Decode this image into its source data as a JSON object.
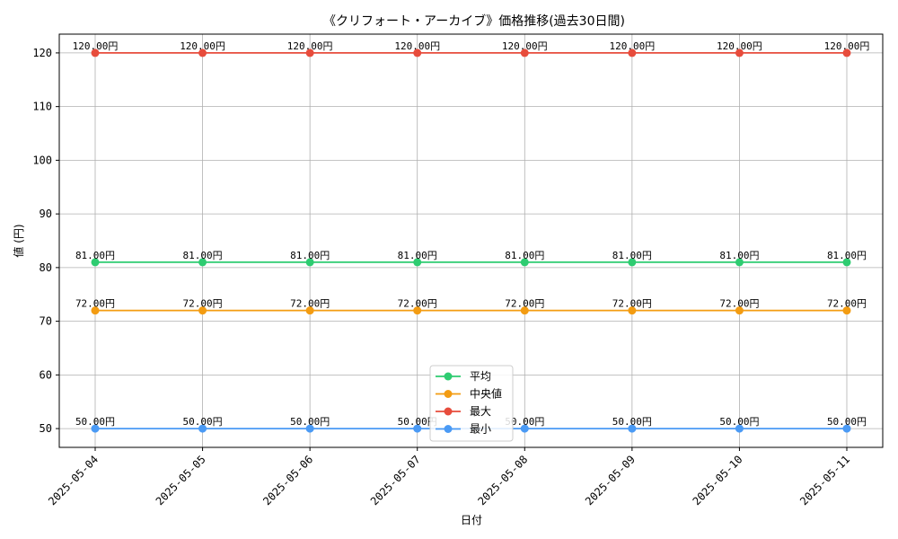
{
  "chart_data": {
    "type": "line",
    "title": "《クリフォート・アーカイブ》価格推移(過去30日間)",
    "xlabel": "日付",
    "ylabel": "値 (円)",
    "categories": [
      "2025-05-04",
      "2025-05-05",
      "2025-05-06",
      "2025-05-07",
      "2025-05-08",
      "2025-05-09",
      "2025-05-10",
      "2025-05-11"
    ],
    "yticks": [
      50,
      60,
      70,
      80,
      90,
      100,
      110,
      120
    ],
    "ylim": [
      46.5,
      123.5
    ],
    "grid": true,
    "legend_position": "lower-center",
    "value_suffix": "円",
    "series": [
      {
        "name": "平均",
        "color": "#2ecc71",
        "values": [
          81,
          81,
          81,
          81,
          81,
          81,
          81,
          81
        ]
      },
      {
        "name": "中央値",
        "color": "#f39c12",
        "values": [
          72,
          72,
          72,
          72,
          72,
          72,
          72,
          72
        ]
      },
      {
        "name": "最大",
        "color": "#e74c3c",
        "values": [
          120,
          120,
          120,
          120,
          120,
          120,
          120,
          120
        ]
      },
      {
        "name": "最小",
        "color": "#4a9af5",
        "values": [
          50,
          50,
          50,
          50,
          50,
          50,
          50,
          50
        ]
      }
    ]
  }
}
